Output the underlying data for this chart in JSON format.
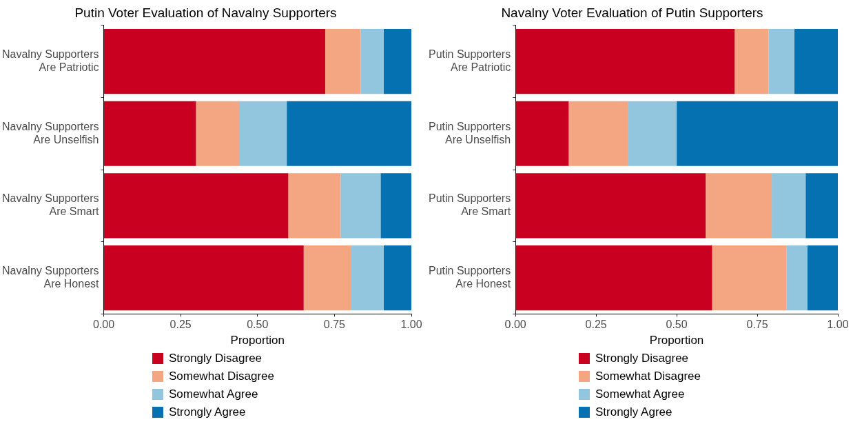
{
  "chart_data": [
    {
      "type": "bar",
      "orientation": "horizontal",
      "stacked": true,
      "title": "Putin Voter Evaluation of Navalny Supporters",
      "xlabel": "Proportion",
      "categories": [
        "Navalny Supporters Are Patriotic",
        "Navalny Supporters Are Unselfish",
        "Navalny Supporters Are Smart",
        "Navalny Supporters Are Honest"
      ],
      "series": [
        {
          "name": "Strongly Disagree",
          "color": "#ca0020",
          "values": [
            0.72,
            0.3,
            0.6,
            0.65
          ]
        },
        {
          "name": "Somewhat Disagree",
          "color": "#f4a582",
          "values": [
            0.115,
            0.14,
            0.17,
            0.155
          ]
        },
        {
          "name": "Somewhat Agree",
          "color": "#92c5de",
          "values": [
            0.075,
            0.155,
            0.13,
            0.105
          ]
        },
        {
          "name": "Strongly Agree",
          "color": "#0571b0",
          "values": [
            0.09,
            0.405,
            0.1,
            0.09
          ]
        }
      ],
      "xlim": [
        0,
        1
      ],
      "xticks": [
        {
          "value": 0,
          "label": "0.00"
        },
        {
          "value": 0.25,
          "label": "0.25"
        },
        {
          "value": 0.5,
          "label": "0.50"
        },
        {
          "value": 0.75,
          "label": "0.75"
        },
        {
          "value": 1,
          "label": "1.00"
        }
      ],
      "grid": false,
      "legend": "bottom"
    },
    {
      "type": "bar",
      "orientation": "horizontal",
      "stacked": true,
      "title": "Navalny Voter Evaluation of Putin Supporters",
      "xlabel": "Proportion",
      "categories": [
        "Putin Supporters Are Patriotic",
        "Putin Supporters Are Unselfish",
        "Putin Supporters Are Smart",
        "Putin Supporters Are Honest"
      ],
      "series": [
        {
          "name": "Strongly Disagree",
          "color": "#ca0020",
          "values": [
            0.68,
            0.165,
            0.59,
            0.61
          ]
        },
        {
          "name": "Somewhat Disagree",
          "color": "#f4a582",
          "values": [
            0.105,
            0.185,
            0.205,
            0.23
          ]
        },
        {
          "name": "Somewhat Agree",
          "color": "#92c5de",
          "values": [
            0.08,
            0.15,
            0.105,
            0.065
          ]
        },
        {
          "name": "Strongly Agree",
          "color": "#0571b0",
          "values": [
            0.135,
            0.5,
            0.1,
            0.095
          ]
        }
      ],
      "xlim": [
        0,
        1
      ],
      "xticks": [
        {
          "value": 0,
          "label": "0.00"
        },
        {
          "value": 0.25,
          "label": "0.25"
        },
        {
          "value": 0.5,
          "label": "0.50"
        },
        {
          "value": 0.75,
          "label": "0.75"
        },
        {
          "value": 1,
          "label": "1.00"
        }
      ],
      "grid": false,
      "legend": "bottom"
    }
  ]
}
